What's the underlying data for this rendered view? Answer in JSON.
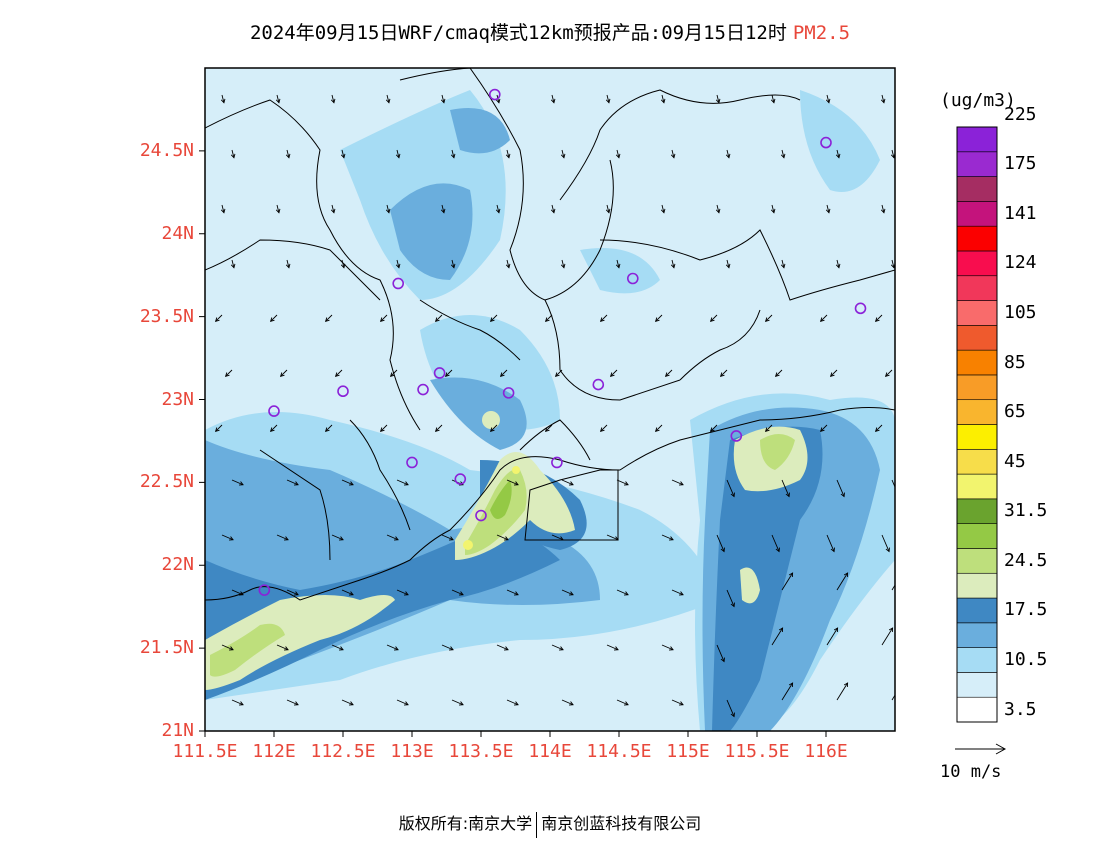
{
  "title": {
    "main": "2024年09月15日WRF/cmaq模式12km预报产品:09月15日12时",
    "species": "PM2.5"
  },
  "axes": {
    "lat_labels": [
      "24.5N",
      "24N",
      "23.5N",
      "23N",
      "22.5N",
      "22N",
      "21.5N",
      "21N"
    ],
    "lat_values": [
      24.5,
      24.0,
      23.5,
      23.0,
      22.5,
      22.0,
      21.5,
      21.0
    ],
    "lon_labels": [
      "111.5E",
      "112E",
      "112.5E",
      "113E",
      "113.5E",
      "114E",
      "114.5E",
      "115E",
      "115.5E",
      "116E"
    ],
    "lon_values": [
      111.5,
      112.0,
      112.5,
      113.0,
      113.5,
      114.0,
      114.5,
      115.0,
      115.5,
      116.0
    ],
    "label_color": "#e8473a"
  },
  "legend": {
    "unit": "(ug/m3)",
    "colors": [
      "#ffffff",
      "#d6eef9",
      "#a6dcf4",
      "#6aaedd",
      "#3f88c3",
      "#dcecbd",
      "#bedf7c",
      "#94c945",
      "#6aa32e",
      "#f2f46e",
      "#f7dd4a",
      "#fcef00",
      "#f9b52e",
      "#f89c27",
      "#f88100",
      "#ef5a2d",
      "#f96b6b",
      "#f1375a",
      "#f80d4e",
      "#fb0000",
      "#c4137c",
      "#a52d62",
      "#9a2ad0",
      "#8b22d8"
    ],
    "labels": [
      "3.5",
      "10.5",
      "17.5",
      "24.5",
      "31.5",
      "45",
      "65",
      "85",
      "105",
      "124",
      "141",
      "175",
      "225"
    ]
  },
  "wind_reference": "10 m/s",
  "stations": [
    {
      "lon": 113.6,
      "lat": 24.84
    },
    {
      "lon": 116.0,
      "lat": 24.55
    },
    {
      "lon": 112.9,
      "lat": 23.7
    },
    {
      "lon": 114.6,
      "lat": 23.73
    },
    {
      "lon": 116.25,
      "lat": 23.55
    },
    {
      "lon": 112.5,
      "lat": 23.05
    },
    {
      "lon": 112.0,
      "lat": 22.93
    },
    {
      "lon": 113.08,
      "lat": 23.06
    },
    {
      "lon": 113.2,
      "lat": 23.16
    },
    {
      "lon": 113.7,
      "lat": 23.04
    },
    {
      "lon": 114.35,
      "lat": 23.09
    },
    {
      "lon": 113.0,
      "lat": 22.62
    },
    {
      "lon": 113.35,
      "lat": 22.52
    },
    {
      "lon": 114.05,
      "lat": 22.62
    },
    {
      "lon": 113.5,
      "lat": 22.3
    },
    {
      "lon": 111.93,
      "lat": 21.85
    },
    {
      "lon": 115.35,
      "lat": 22.78
    }
  ],
  "footer": {
    "left": "版权所有:南京大学",
    "right": "南京创蓝科技有限公司"
  }
}
